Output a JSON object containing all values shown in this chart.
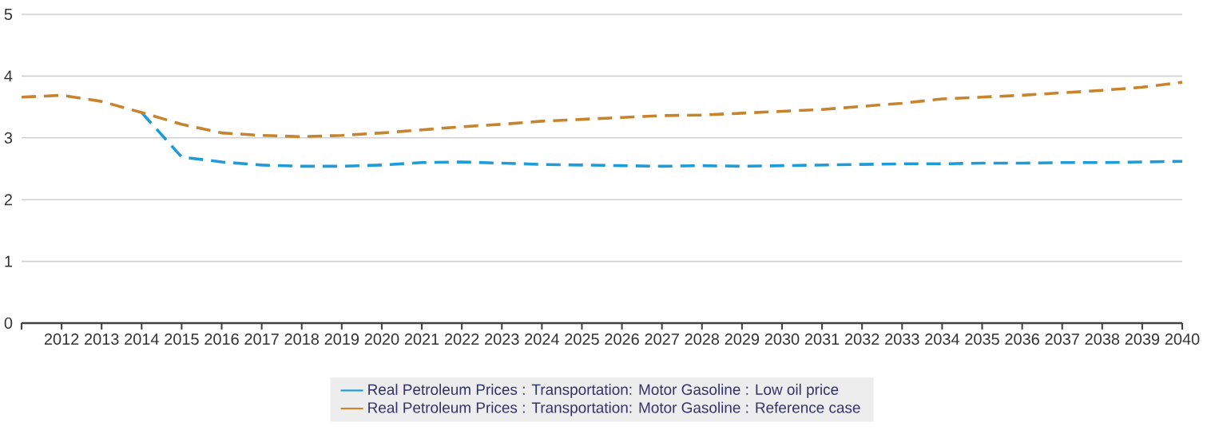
{
  "chart_data": {
    "type": "line",
    "xlim": [
      2011,
      2040
    ],
    "ylim": [
      0,
      5
    ],
    "xticks": [
      {
        "value": 2011,
        "label": null
      },
      2012,
      2013,
      2014,
      2015,
      2016,
      2017,
      2018,
      2019,
      2020,
      2021,
      2022,
      2023,
      2024,
      2025,
      2026,
      2027,
      2028,
      2029,
      2030,
      2031,
      2032,
      2033,
      2034,
      2035,
      2036,
      2037,
      2038,
      2039,
      2040
    ],
    "yticks": [
      0,
      1,
      2,
      3,
      4,
      5
    ],
    "grid": "y",
    "legend": "bottom",
    "line_style": "dashed",
    "series": [
      {
        "name": "Real Petroleum Prices : Transportation: Motor Gasoline : Low oil price",
        "color": "#1f9bd7",
        "x": [
          2014,
          2015,
          2016,
          2017,
          2018,
          2019,
          2020,
          2021,
          2022,
          2023,
          2024,
          2025,
          2026,
          2027,
          2028,
          2029,
          2030,
          2031,
          2032,
          2033,
          2034,
          2035,
          2036,
          2037,
          2038,
          2039,
          2040
        ],
        "values": [
          3.41,
          2.69,
          2.61,
          2.56,
          2.54,
          2.54,
          2.56,
          2.6,
          2.61,
          2.59,
          2.57,
          2.56,
          2.55,
          2.54,
          2.55,
          2.54,
          2.55,
          2.56,
          2.57,
          2.58,
          2.58,
          2.59,
          2.59,
          2.6,
          2.6,
          2.61,
          2.62
        ]
      },
      {
        "name": "Real Petroleum Prices : Transportation: Motor Gasoline : Reference case",
        "color": "#c8842c",
        "x": [
          2011,
          2012,
          2013,
          2014,
          2015,
          2016,
          2017,
          2018,
          2019,
          2020,
          2021,
          2022,
          2023,
          2024,
          2025,
          2026,
          2027,
          2028,
          2029,
          2030,
          2031,
          2032,
          2033,
          2034,
          2035,
          2036,
          2037,
          2038,
          2039,
          2040
        ],
        "values": [
          3.66,
          3.69,
          3.59,
          3.41,
          3.22,
          3.08,
          3.04,
          3.02,
          3.04,
          3.08,
          3.13,
          3.18,
          3.22,
          3.27,
          3.3,
          3.33,
          3.36,
          3.37,
          3.4,
          3.43,
          3.46,
          3.51,
          3.56,
          3.63,
          3.66,
          3.69,
          3.73,
          3.77,
          3.82,
          3.9
        ]
      }
    ]
  }
}
